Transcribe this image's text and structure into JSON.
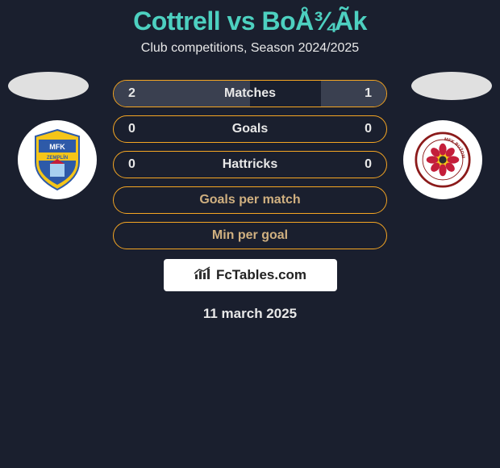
{
  "title": "Cottrell vs BoÅ¾Ãk",
  "subtitle": "Club competitions, Season 2024/2025",
  "date": "11 march 2025",
  "colors": {
    "background": "#1a1f2e",
    "accent": "#4dd0c0",
    "border": "#f5a623",
    "fill": "#3a4050",
    "text": "#e8e8e8"
  },
  "stats": [
    {
      "label": "Matches",
      "leftVal": "2",
      "rightVal": "1",
      "leftFillPct": 50,
      "rightFillPct": 24
    },
    {
      "label": "Goals",
      "leftVal": "0",
      "rightVal": "0",
      "leftFillPct": 0,
      "rightFillPct": 0
    },
    {
      "label": "Hattricks",
      "leftVal": "0",
      "rightVal": "0",
      "leftFillPct": 0,
      "rightFillPct": 0
    },
    {
      "label": "Goals per match",
      "leftVal": "",
      "rightVal": "",
      "leftFillPct": 0,
      "rightFillPct": 0
    },
    {
      "label": "Min per goal",
      "leftVal": "",
      "rightVal": "",
      "leftFillPct": 0,
      "rightFillPct": 0
    }
  ],
  "watermark": {
    "text": "FcTables.com"
  },
  "leftBadge": {
    "bg": "#ffffff",
    "shieldTop": "#f5c518",
    "shieldMid": "#2e5aa8",
    "shieldBottom": "#f5c518",
    "textTop": "MFK",
    "textBand": "ZEMPLÍN"
  },
  "rightBadge": {
    "bg": "#ffffff",
    "ring": "#8b1a1a",
    "center": "#f5c518",
    "petals": "#c41e3a",
    "textRing": "MFK RUŽOMBEROK"
  }
}
